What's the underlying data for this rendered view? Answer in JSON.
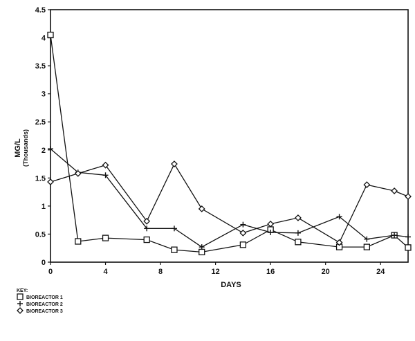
{
  "chart_data": {
    "type": "line",
    "xlabel": "DAYS",
    "ylabel": "MG/L",
    "ylabel_sub": "(Thousands)",
    "xlim": [
      0,
      26
    ],
    "ylim": [
      0,
      4.5
    ],
    "x_ticks": [
      "0",
      "4",
      "8",
      "12",
      "16",
      "20",
      "24"
    ],
    "y_ticks": [
      "0",
      "0.5",
      "1",
      "1.5",
      "2",
      "2.5",
      "3",
      "3.5",
      "4",
      "4.5"
    ],
    "grid": false,
    "legend": {
      "title": "KEY:",
      "placement": "bottom-left",
      "entries": [
        "BIOREACTOR 1",
        "BIOREACTOR 2",
        "BIOREACTOR 3"
      ]
    },
    "series": [
      {
        "name": "BIOREACTOR 1",
        "marker": "square",
        "x": [
          0,
          2,
          4,
          7,
          9,
          11,
          14,
          16,
          18,
          21,
          23,
          25,
          26
        ],
        "y": [
          4.05,
          0.37,
          0.43,
          0.4,
          0.22,
          0.18,
          0.31,
          0.58,
          0.36,
          0.27,
          0.27,
          0.48,
          0.26
        ]
      },
      {
        "name": "BIOREACTOR 2",
        "marker": "plus",
        "x": [
          0,
          2,
          4,
          7,
          9,
          11,
          14,
          16,
          18,
          21,
          23,
          25,
          26
        ],
        "y": [
          2.02,
          1.6,
          1.55,
          0.6,
          0.6,
          0.27,
          0.67,
          0.53,
          0.52,
          0.81,
          0.41,
          0.48,
          0.45
        ]
      },
      {
        "name": "BIOREACTOR 3",
        "marker": "diamond",
        "x": [
          0,
          2,
          4,
          7,
          9,
          11,
          14,
          16,
          18,
          21,
          23,
          25,
          26
        ],
        "y": [
          1.43,
          1.58,
          1.73,
          0.73,
          1.75,
          0.95,
          0.52,
          0.68,
          0.79,
          0.35,
          1.38,
          1.27,
          1.17
        ]
      }
    ]
  }
}
